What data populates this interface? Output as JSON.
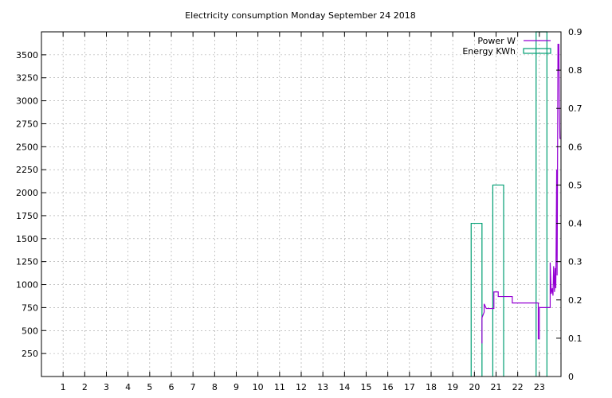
{
  "chart_data": {
    "type": "line",
    "title": "Electricity consumption Monday September 24 2018",
    "xlabel": "",
    "ylabel": "",
    "y2label": "",
    "xlim": [
      0,
      24
    ],
    "ylim": [
      0,
      3750
    ],
    "y2lim": [
      0,
      0.9
    ],
    "x_ticks": [
      "1",
      "2",
      "3",
      "4",
      "5",
      "6",
      "7",
      "8",
      "9",
      "10",
      "11",
      "12",
      "13",
      "14",
      "15",
      "16",
      "17",
      "18",
      "19",
      "20",
      "21",
      "22",
      "23"
    ],
    "y_ticks": [
      "250",
      "500",
      "750",
      "1000",
      "1250",
      "1500",
      "1750",
      "2000",
      "2250",
      "2500",
      "2750",
      "3000",
      "3250",
      "3500"
    ],
    "y2_ticks": [
      "0",
      "0.1",
      "0.2",
      "0.3",
      "0.4",
      "0.5",
      "0.6",
      "0.7",
      "0.8",
      "0.9"
    ],
    "grid": true,
    "legend_position": "top-right",
    "colors": {
      "power": "#9400d3",
      "energy": "#009e73",
      "grid": "#a0a0a0",
      "axis": "#000000"
    },
    "series": [
      {
        "name": "Power W",
        "type": "step-line",
        "axis": "y",
        "points": [
          [
            20.35,
            360
          ],
          [
            20.35,
            640
          ],
          [
            20.45,
            700
          ],
          [
            20.45,
            790
          ],
          [
            20.55,
            740
          ],
          [
            20.9,
            740
          ],
          [
            20.9,
            920
          ],
          [
            21.1,
            920
          ],
          [
            21.1,
            870
          ],
          [
            21.75,
            870
          ],
          [
            21.75,
            800
          ],
          [
            22.25,
            800
          ],
          [
            22.25,
            800
          ],
          [
            22.95,
            800
          ],
          [
            22.95,
            410
          ],
          [
            23.0,
            410
          ],
          [
            23.0,
            750
          ],
          [
            23.5,
            750
          ],
          [
            23.5,
            1240
          ],
          [
            23.55,
            900
          ],
          [
            23.6,
            960
          ],
          [
            23.63,
            880
          ],
          [
            23.66,
            1200
          ],
          [
            23.7,
            920
          ],
          [
            23.73,
            1180
          ],
          [
            23.76,
            960
          ],
          [
            23.78,
            1560
          ],
          [
            23.8,
            2250
          ],
          [
            23.82,
            1100
          ],
          [
            23.84,
            2250
          ],
          [
            23.86,
            3620
          ],
          [
            23.88,
            3330
          ],
          [
            23.9,
            3620
          ],
          [
            23.92,
            3000
          ],
          [
            23.95,
            2590
          ],
          [
            24.0,
            2590
          ]
        ]
      },
      {
        "name": "Energy KWh",
        "type": "step-bar",
        "axis": "y2",
        "bars": [
          [
            19.85,
            20.35,
            0.4
          ],
          [
            20.85,
            21.35,
            0.5
          ],
          [
            22.85,
            23.35,
            0.9
          ]
        ]
      }
    ]
  }
}
